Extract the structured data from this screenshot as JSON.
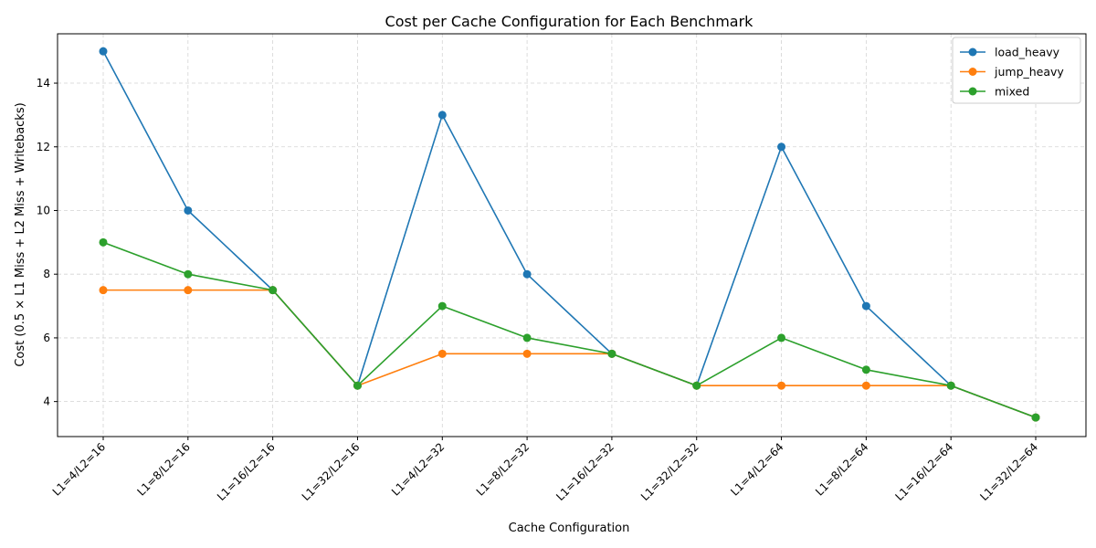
{
  "chart_data": {
    "type": "line",
    "title": "Cost per Cache Configuration for Each Benchmark",
    "xlabel": "Cache Configuration",
    "ylabel": "Cost (0.5 × L1 Miss + L2 Miss + Writebacks)",
    "categories": [
      "L1=4/L2=16",
      "L1=8/L2=16",
      "L1=16/L2=16",
      "L1=32/L2=16",
      "L1=4/L2=32",
      "L1=8/L2=32",
      "L1=16/L2=32",
      "L1=32/L2=32",
      "L1=4/L2=64",
      "L1=8/L2=64",
      "L1=16/L2=64",
      "L1=32/L2=64"
    ],
    "yticks": [
      4,
      6,
      8,
      10,
      12,
      14
    ],
    "ylim": [
      2.9,
      15.55
    ],
    "grid": true,
    "legend_position": "top-right",
    "series": [
      {
        "name": "load_heavy",
        "color": "#1f77b4",
        "values": [
          15,
          10,
          7.5,
          4.5,
          13,
          8,
          5.5,
          4.5,
          12,
          7,
          4.5,
          3.5
        ]
      },
      {
        "name": "jump_heavy",
        "color": "#ff7f0e",
        "values": [
          7.5,
          7.5,
          7.5,
          4.5,
          5.5,
          5.5,
          5.5,
          4.5,
          4.5,
          4.5,
          4.5,
          3.5
        ]
      },
      {
        "name": "mixed",
        "color": "#2ca02c",
        "values": [
          9,
          8,
          7.5,
          4.5,
          7,
          6,
          5.5,
          4.5,
          6,
          5,
          4.5,
          3.5
        ]
      }
    ]
  }
}
